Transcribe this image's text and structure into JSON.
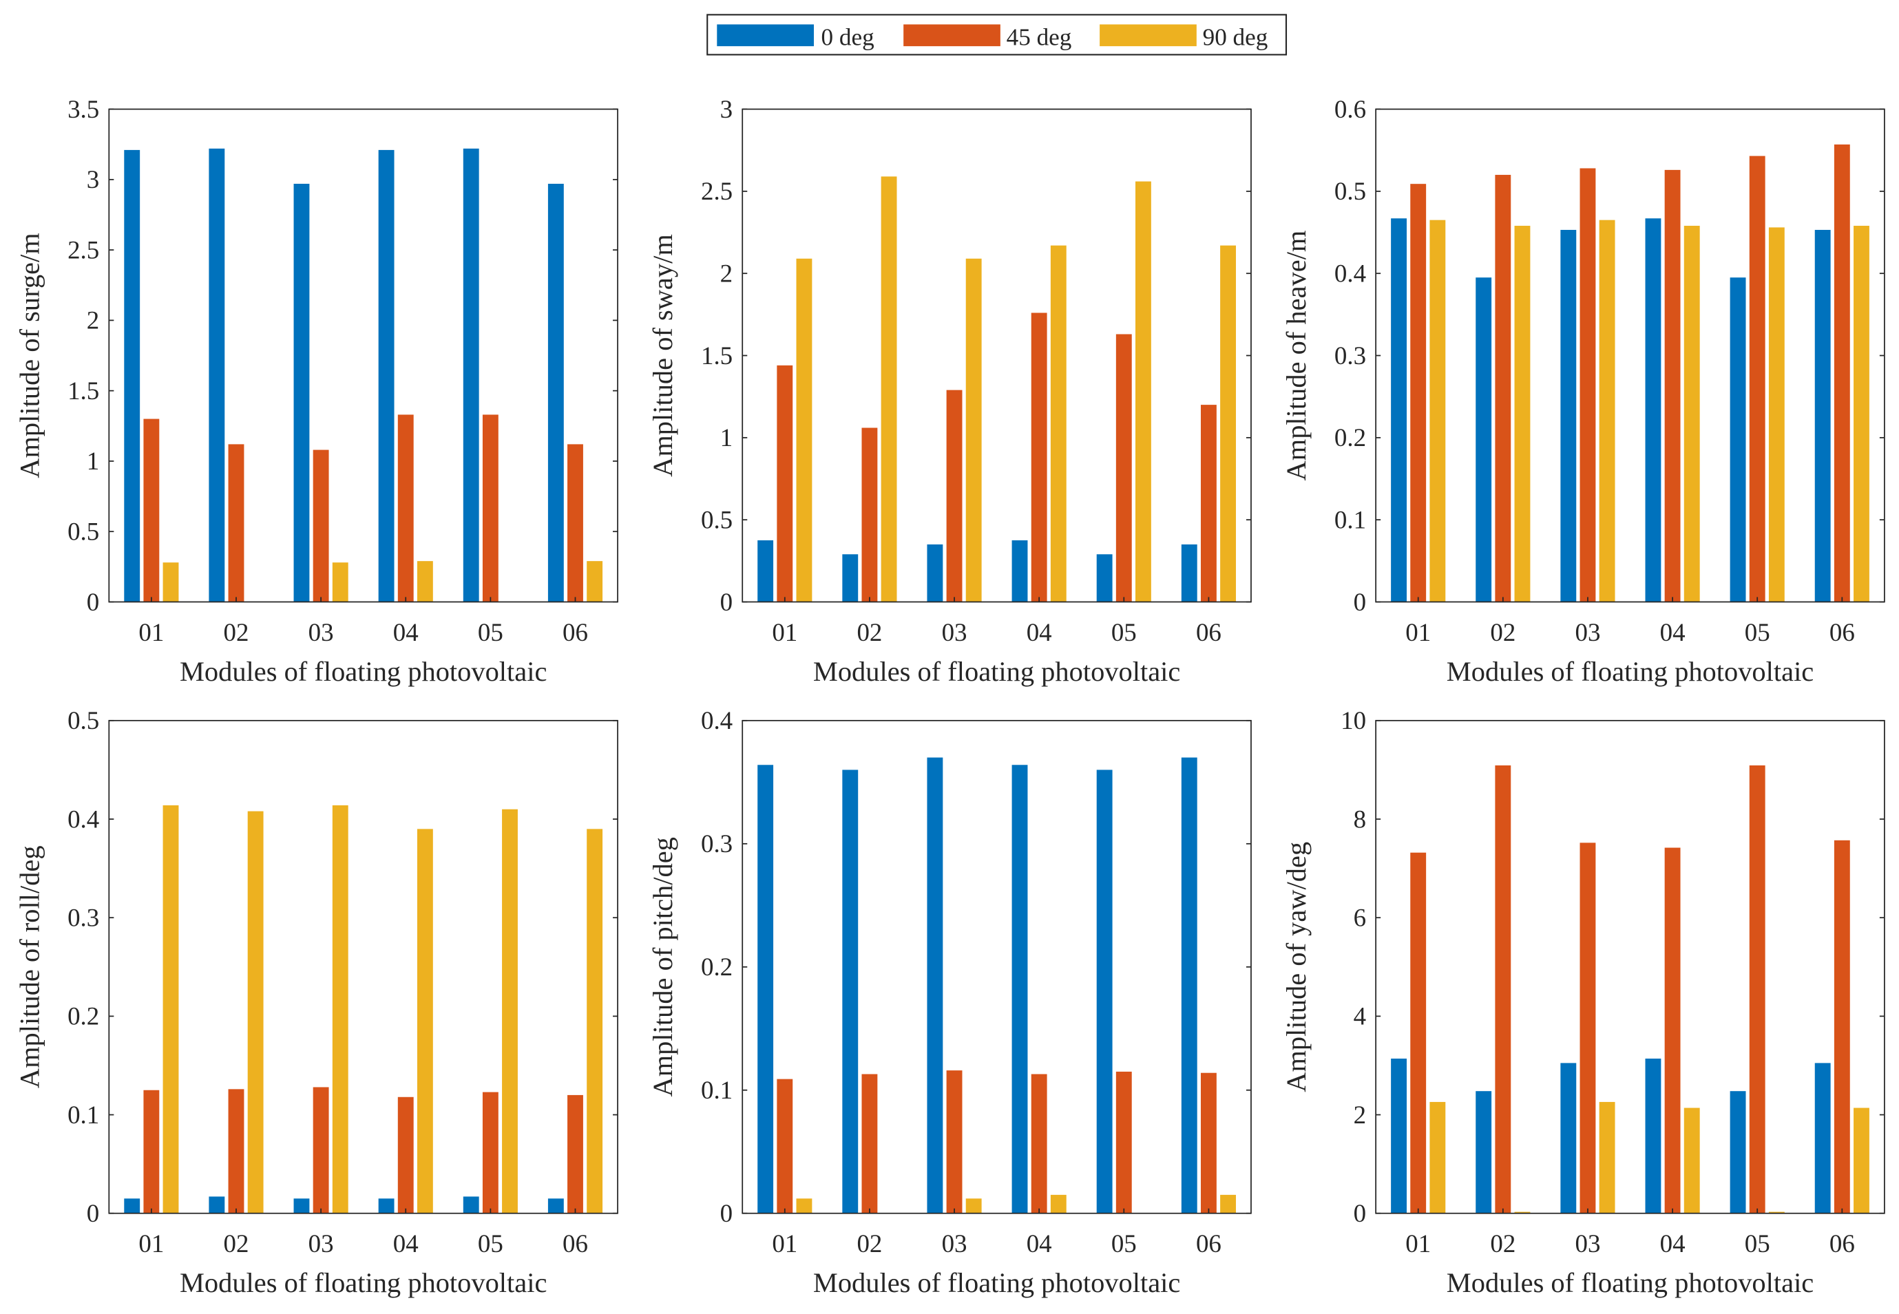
{
  "colors": {
    "s0": "#0072BD",
    "s1": "#D95319",
    "s2": "#EDB120"
  },
  "legend": {
    "placement": "top-center",
    "entries": [
      "0 deg",
      "45 deg",
      "90 deg"
    ]
  },
  "chart_data": [
    {
      "type": "bar",
      "title": "",
      "xlabel": "Modules of floating photovoltaic",
      "ylabel": "Amplitude of surge/m",
      "ylim": [
        0,
        3.5
      ],
      "yticks": [
        "0",
        "0.5",
        "1",
        "1.5",
        "2",
        "2.5",
        "3",
        "3.5"
      ],
      "categories": [
        "01",
        "02",
        "03",
        "04",
        "05",
        "06"
      ],
      "series": [
        {
          "name": "0 deg",
          "values": [
            3.21,
            3.22,
            2.97,
            3.21,
            3.22,
            2.97
          ]
        },
        {
          "name": "45 deg",
          "values": [
            1.3,
            1.12,
            1.08,
            1.33,
            1.33,
            1.12
          ]
        },
        {
          "name": "90 deg",
          "values": [
            0.28,
            0,
            0.28,
            0.29,
            0,
            0.29
          ]
        }
      ]
    },
    {
      "type": "bar",
      "title": "",
      "xlabel": "Modules of floating photovoltaic",
      "ylabel": "Amplitude of sway/m",
      "ylim": [
        0,
        3
      ],
      "yticks": [
        "0",
        "0.5",
        "1",
        "1.5",
        "2",
        "2.5",
        "3"
      ],
      "categories": [
        "01",
        "02",
        "03",
        "04",
        "05",
        "06"
      ],
      "series": [
        {
          "name": "0 deg",
          "values": [
            0.375,
            0.29,
            0.35,
            0.375,
            0.29,
            0.35
          ]
        },
        {
          "name": "45 deg",
          "values": [
            1.44,
            1.06,
            1.29,
            1.76,
            1.63,
            1.2
          ]
        },
        {
          "name": "90 deg",
          "values": [
            2.09,
            2.59,
            2.09,
            2.17,
            2.56,
            2.17
          ]
        }
      ]
    },
    {
      "type": "bar",
      "title": "",
      "xlabel": "Modules of floating photovoltaic",
      "ylabel": "Amplitude of heave/m",
      "ylim": [
        0,
        0.6
      ],
      "yticks": [
        "0",
        "0.1",
        "0.2",
        "0.3",
        "0.4",
        "0.5",
        "0.6"
      ],
      "categories": [
        "01",
        "02",
        "03",
        "04",
        "05",
        "06"
      ],
      "series": [
        {
          "name": "0 deg",
          "values": [
            0.467,
            0.395,
            0.453,
            0.467,
            0.395,
            0.453
          ]
        },
        {
          "name": "45 deg",
          "values": [
            0.509,
            0.52,
            0.528,
            0.526,
            0.543,
            0.557
          ]
        },
        {
          "name": "90 deg",
          "values": [
            0.465,
            0.458,
            0.465,
            0.458,
            0.456,
            0.458
          ]
        }
      ]
    },
    {
      "type": "bar",
      "title": "",
      "xlabel": "Modules of floating photovoltaic",
      "ylabel": "Amplitude of roll/deg",
      "ylim": [
        0,
        0.5
      ],
      "yticks": [
        "0",
        "0.1",
        "0.2",
        "0.3",
        "0.4",
        "0.5"
      ],
      "categories": [
        "01",
        "02",
        "03",
        "04",
        "05",
        "06"
      ],
      "series": [
        {
          "name": "0 deg",
          "values": [
            0.015,
            0.017,
            0.015,
            0.015,
            0.017,
            0.015
          ]
        },
        {
          "name": "45 deg",
          "values": [
            0.125,
            0.126,
            0.128,
            0.118,
            0.123,
            0.12
          ]
        },
        {
          "name": "90 deg",
          "values": [
            0.414,
            0.408,
            0.414,
            0.39,
            0.41,
            0.39
          ]
        }
      ]
    },
    {
      "type": "bar",
      "title": "",
      "xlabel": "Modules of floating photovoltaic",
      "ylabel": "Amplitude of pitch/deg",
      "ylim": [
        0,
        0.4
      ],
      "yticks": [
        "0",
        "0.1",
        "0.2",
        "0.3",
        "0.4"
      ],
      "categories": [
        "01",
        "02",
        "03",
        "04",
        "05",
        "06"
      ],
      "series": [
        {
          "name": "0 deg",
          "values": [
            0.364,
            0.36,
            0.37,
            0.364,
            0.36,
            0.37
          ]
        },
        {
          "name": "45 deg",
          "values": [
            0.109,
            0.113,
            0.116,
            0.113,
            0.115,
            0.114
          ]
        },
        {
          "name": "90 deg",
          "values": [
            0.012,
            0,
            0.012,
            0.015,
            0,
            0.015
          ]
        }
      ]
    },
    {
      "type": "bar",
      "title": "",
      "xlabel": "Modules of floating photovoltaic",
      "ylabel": "Amplitude of yaw/deg",
      "ylim": [
        0,
        10
      ],
      "yticks": [
        "0",
        "2",
        "4",
        "6",
        "8",
        "10"
      ],
      "categories": [
        "01",
        "02",
        "03",
        "04",
        "05",
        "06"
      ],
      "series": [
        {
          "name": "0 deg",
          "values": [
            3.14,
            2.48,
            3.05,
            3.14,
            2.48,
            3.05
          ]
        },
        {
          "name": "45 deg",
          "values": [
            7.32,
            9.09,
            7.52,
            7.42,
            9.09,
            7.57
          ]
        },
        {
          "name": "90 deg",
          "values": [
            2.26,
            0.03,
            2.26,
            2.14,
            0.03,
            2.14
          ]
        }
      ]
    }
  ]
}
